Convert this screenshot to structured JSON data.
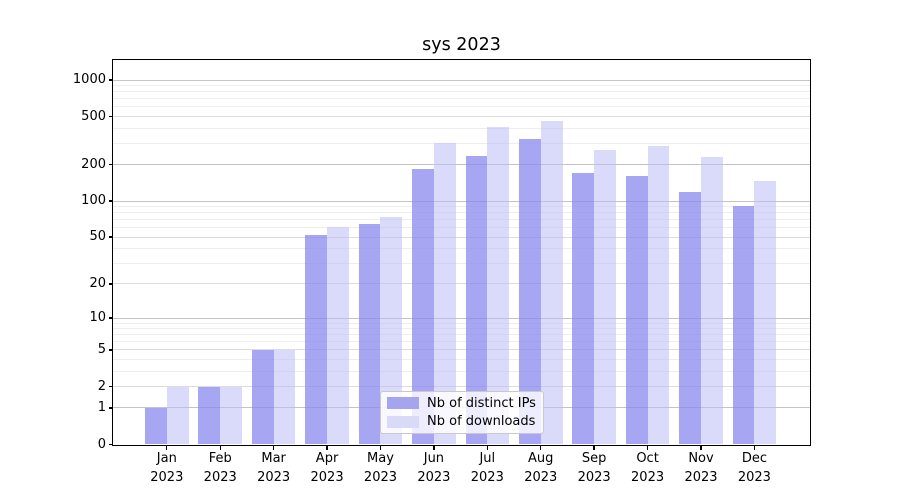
{
  "chart_data": {
    "type": "bar",
    "title": "sys 2023",
    "categories": [
      "Jan",
      "Feb",
      "Mar",
      "Apr",
      "May",
      "Jun",
      "Jul",
      "Aug",
      "Sep",
      "Oct",
      "Nov",
      "Dec"
    ],
    "x_tick_labels": [
      [
        "Jan",
        "2023"
      ],
      [
        "Feb",
        "2023"
      ],
      [
        "Mar",
        "2023"
      ],
      [
        "Apr",
        "2023"
      ],
      [
        "May",
        "2023"
      ],
      [
        "Jun",
        "2023"
      ],
      [
        "Jul",
        "2023"
      ],
      [
        "Aug",
        "2023"
      ],
      [
        "Sep",
        "2023"
      ],
      [
        "Oct",
        "2023"
      ],
      [
        "Nov",
        "2023"
      ],
      [
        "Dec",
        "2023"
      ]
    ],
    "series": [
      {
        "name": "Nb of distinct IPs",
        "values": [
          1,
          2,
          5,
          52,
          64,
          184,
          237,
          327,
          170,
          162,
          119,
          91
        ],
        "bar_color": "rgba(136,136,238,0.75)",
        "swatch_color": "#a5a5ef"
      },
      {
        "name": "Nb of downloads",
        "values": [
          2,
          2,
          5,
          61,
          74,
          300,
          411,
          458,
          264,
          287,
          232,
          147
        ],
        "bar_color": "rgba(187,187,247,0.55)",
        "swatch_color": "#d9d9f8"
      }
    ],
    "y_axis": {
      "scale": "log10(1+y)",
      "ticks": [
        0,
        1,
        2,
        5,
        10,
        20,
        50,
        100,
        200,
        500,
        1000
      ],
      "minor_gridlines": [
        3,
        4,
        6,
        7,
        8,
        9,
        30,
        40,
        60,
        70,
        80,
        90,
        300,
        400,
        600,
        700,
        800,
        900
      ],
      "max": 1463
    },
    "grid": true,
    "legend_position": "lower center",
    "colors": {
      "grid_strong": "#c4c4c4",
      "grid_mid": "#dcdcdc",
      "grid_minor": "#eeeeee",
      "axis": "#000000"
    }
  }
}
